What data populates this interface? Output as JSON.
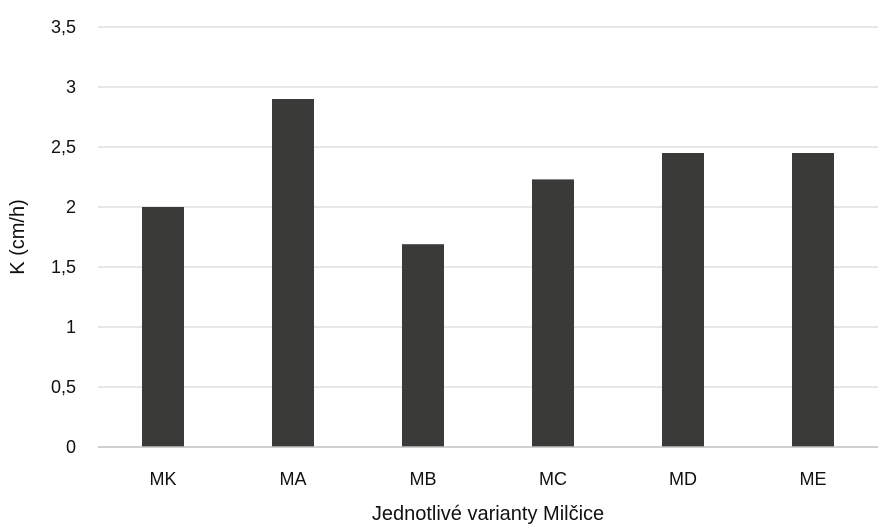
{
  "chart_data": {
    "type": "bar",
    "title": "",
    "xlabel": "Jednotlivé varianty Milčice",
    "ylabel": "K (cm/h)",
    "categories": [
      "MK",
      "MA",
      "MB",
      "MC",
      "MD",
      "ME"
    ],
    "values": [
      2.0,
      2.9,
      1.69,
      2.23,
      2.45,
      2.45
    ],
    "ylim": [
      0,
      3.5
    ],
    "yticks": [
      0,
      0.5,
      1,
      1.5,
      2,
      2.5,
      3,
      3.5
    ],
    "ytick_labels": [
      "0",
      "0,5",
      "1",
      "1,5",
      "2",
      "2,5",
      "3",
      "3,5"
    ],
    "grid": true,
    "legend": "none",
    "colors": {
      "bar": "#3a3a39",
      "grid": "#d9d9d9",
      "axis": "#bfbfbf"
    }
  }
}
